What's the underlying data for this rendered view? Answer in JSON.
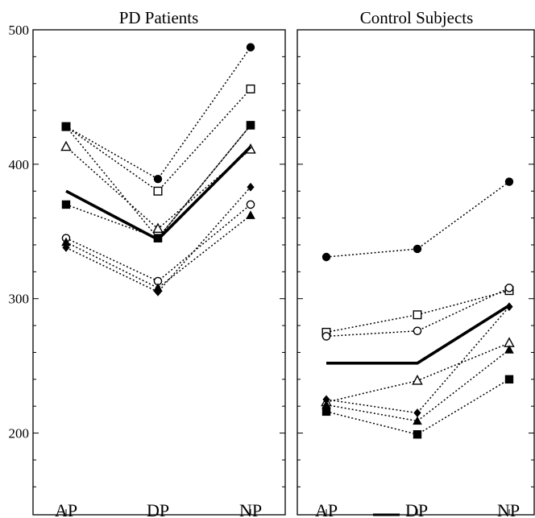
{
  "chart_data": [
    {
      "type": "line",
      "title": "PD Patients",
      "categories": [
        "AP",
        "DP",
        "NP"
      ],
      "ylim": [
        150,
        500
      ],
      "yticks": [
        200,
        300,
        400,
        500
      ],
      "grid": false,
      "series": [
        {
          "marker": "filled-circle",
          "style": "dotted",
          "values": [
            428,
            389,
            487
          ]
        },
        {
          "marker": "open-square",
          "style": "dotted",
          "values": [
            428,
            380,
            456
          ]
        },
        {
          "marker": "filled-square",
          "style": "dotted",
          "values": [
            428,
            345,
            429
          ]
        },
        {
          "marker": "open-triangle",
          "style": "dotted",
          "values": [
            413,
            352,
            411
          ]
        },
        {
          "marker": "filled-square",
          "style": "dotted",
          "values": [
            370,
            345,
            429
          ]
        },
        {
          "marker": "open-circle",
          "style": "dotted",
          "values": [
            345,
            313,
            370
          ]
        },
        {
          "marker": "filled-diamond",
          "style": "dotted",
          "values": [
            338,
            305,
            383
          ]
        },
        {
          "marker": "filled-triangle",
          "style": "dotted",
          "values": [
            342,
            308,
            362
          ]
        },
        {
          "marker": "none",
          "style": "bold",
          "values": [
            380,
            344,
            413
          ]
        }
      ]
    },
    {
      "type": "line",
      "title": "Control Subjects",
      "categories": [
        "AP",
        "DP",
        "NP"
      ],
      "ylim": [
        150,
        500
      ],
      "grid": false,
      "series": [
        {
          "marker": "filled-circle",
          "style": "dotted",
          "values": [
            331,
            337,
            387
          ]
        },
        {
          "marker": "open-square",
          "style": "dotted",
          "values": [
            275,
            288,
            306
          ]
        },
        {
          "marker": "open-circle",
          "style": "dotted",
          "values": [
            272,
            276,
            308
          ]
        },
        {
          "marker": "open-triangle",
          "style": "dotted",
          "values": [
            223,
            239,
            267
          ]
        },
        {
          "marker": "filled-diamond",
          "style": "dotted",
          "values": [
            225,
            215,
            294
          ]
        },
        {
          "marker": "filled-triangle",
          "style": "dotted",
          "values": [
            221,
            209,
            262
          ]
        },
        {
          "marker": "filled-square",
          "style": "dotted",
          "values": [
            216,
            199,
            240
          ]
        },
        {
          "marker": "none",
          "style": "bold",
          "values": [
            252,
            252,
            295
          ]
        }
      ]
    }
  ]
}
